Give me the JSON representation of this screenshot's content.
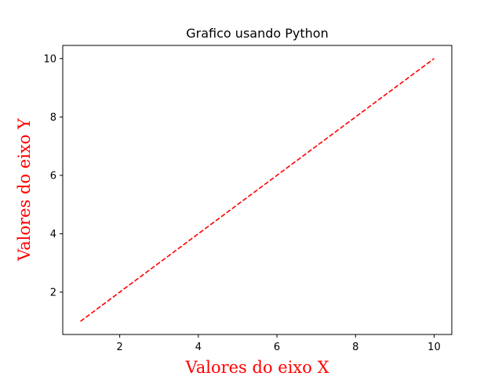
{
  "chart_data": {
    "type": "line",
    "title": "Grafico usando Python",
    "xlabel": "Valores do eixo X",
    "ylabel": "Valores do eixo Y",
    "xlim": [
      0.55,
      10.45
    ],
    "ylim": [
      0.55,
      10.45
    ],
    "xticks": [
      2,
      4,
      6,
      8,
      10
    ],
    "yticks": [
      2,
      4,
      6,
      8,
      10
    ],
    "xtick_labels": [
      "2",
      "4",
      "6",
      "8",
      "10"
    ],
    "ytick_labels": [
      "2",
      "4",
      "6",
      "8",
      "10"
    ],
    "grid": false,
    "series": [
      {
        "x": [
          1,
          2,
          3,
          4,
          5,
          6,
          7,
          8,
          9,
          10
        ],
        "y": [
          1,
          2,
          3,
          4,
          5,
          6,
          7,
          8,
          9,
          10
        ],
        "color": "#ff0000",
        "linestyle": "dashed"
      }
    ],
    "label_color": "#ff0000"
  }
}
